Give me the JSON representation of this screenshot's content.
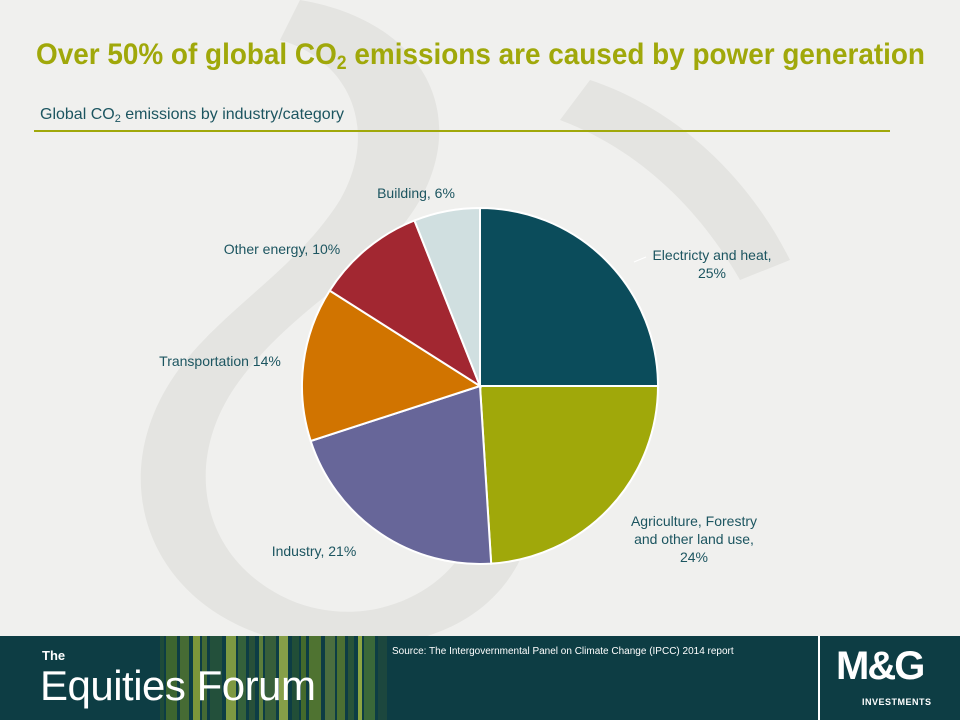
{
  "header": {
    "title_pre": "Over 50% of global CO",
    "title_sub": "2",
    "title_post": " emissions are caused by power generation",
    "subtitle_pre": "Global CO",
    "subtitle_sub": "2",
    "subtitle_post": " emissions by industry/category"
  },
  "chart_data": {
    "type": "pie",
    "slices": [
      {
        "label": [
          "Electricty and heat,",
          "25%"
        ],
        "value": 25,
        "color": "#0b4c5b"
      },
      {
        "label": [
          "Agriculture, Forestry",
          "and other land use,",
          "24%"
        ],
        "value": 24,
        "color": "#a0a80a"
      },
      {
        "label": [
          "Industry,  21%"
        ],
        "value": 21,
        "color": "#676699"
      },
      {
        "label": [
          "Transportation 14%"
        ],
        "value": 14,
        "color": "#d17400"
      },
      {
        "label": [
          "Other energy,  10%"
        ],
        "value": 10,
        "color": "#a22731"
      },
      {
        "label": [
          "Building, 6%"
        ],
        "value": 6,
        "color": "#d0dfe0"
      }
    ]
  },
  "footer": {
    "brand_the": "The",
    "brand_name": "Equities Forum",
    "source": "Source: The Intergovernmental Panel on Climate Change (IPCC) 2014 report",
    "logo_main": "M&G",
    "logo_sub": "INVESTMENTS"
  },
  "colors": {
    "accent": "#a0a80a",
    "footer_bg": "#0d3d44",
    "subtitle": "#1c5560"
  }
}
